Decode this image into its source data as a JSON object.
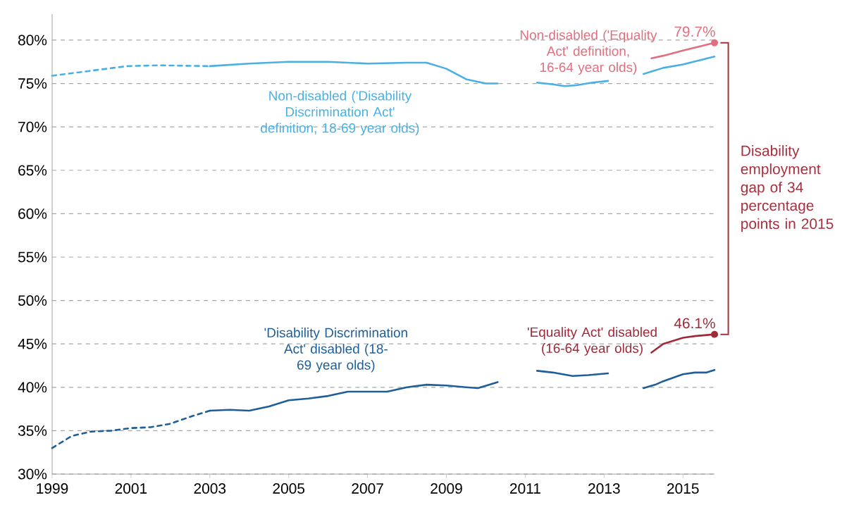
{
  "chart_data": {
    "type": "line",
    "annotations": [
      "Disability employment gap of 34 percentage points in 2015"
    ],
    "xlim": [
      1999,
      2015.8
    ],
    "ylim": [
      30,
      83
    ],
    "xticks": [
      1999,
      2001,
      2003,
      2005,
      2007,
      2009,
      2011,
      2013,
      2015
    ],
    "yticks": [
      {
        "value": 30,
        "label": "30%"
      },
      {
        "value": 35,
        "label": "35%"
      },
      {
        "value": 40,
        "label": "40%"
      },
      {
        "value": 45,
        "label": "45%"
      },
      {
        "value": 50,
        "label": "50%"
      },
      {
        "value": 55,
        "label": "55%"
      },
      {
        "value": 60,
        "label": "60%"
      },
      {
        "value": 65,
        "label": "65%"
      },
      {
        "value": 70,
        "label": "70%"
      },
      {
        "value": 75,
        "label": "75%"
      },
      {
        "value": 80,
        "label": "80%"
      }
    ],
    "grid": "y",
    "legend": false,
    "series": [
      {
        "color": "#4ab0e4",
        "line_style": "dashed",
        "x": [
          1999,
          2000.9,
          2001.7,
          2003
        ],
        "values": [
          75.9,
          77.0,
          77.1,
          77.0
        ]
      },
      {
        "name": "Non-disabled ('Disability Discrimination Act' definition, 18-69 year olds)",
        "color": "#4ab0e4",
        "line_style": "solid",
        "x": [
          2003,
          2004,
          2005,
          2006,
          2007,
          2008,
          2008.5,
          2009,
          2009.5,
          2010,
          2010.3,
          2010.8,
          2011.3,
          2011.7,
          2012,
          2012.3,
          2012.7,
          2013.1,
          2013.5,
          2014,
          2014.5,
          2015,
          2015.8
        ],
        "values": [
          77.0,
          77.3,
          77.5,
          77.5,
          77.3,
          77.4,
          77.4,
          76.7,
          75.5,
          75.0,
          75.0,
          null,
          75.1,
          74.9,
          74.7,
          74.8,
          75.1,
          75.3,
          null,
          76.1,
          76.8,
          77.2,
          78.1
        ]
      },
      {
        "name": "Non-disabled ('Equality Act' definition, 16-64 year olds)",
        "color": "#e0707f",
        "line_style": "solid",
        "x": [
          2014.2,
          2014.5,
          2015,
          2015.8
        ],
        "values": [
          77.9,
          78.2,
          78.8,
          79.7
        ],
        "value_labels": [
          null,
          null,
          null,
          "79.7%"
        ]
      },
      {
        "color": "#1f5f99",
        "line_style": "dashed",
        "x": [
          1999,
          1999.5,
          2000,
          2000.5,
          2001,
          2001.5,
          2002,
          2002.5,
          2003
        ],
        "values": [
          33.0,
          34.4,
          34.9,
          35.0,
          35.3,
          35.4,
          35.8,
          36.6,
          37.3
        ]
      },
      {
        "name": "'Disability Discrimination Act' disabled (18-69 year olds)",
        "color": "#1f5f99",
        "line_style": "solid",
        "x": [
          2003,
          2003.5,
          2004,
          2004.5,
          2005,
          2005.5,
          2006,
          2006.5,
          2007,
          2007.5,
          2008,
          2008.5,
          2009,
          2009.5,
          2009.8,
          2010.3,
          2010.8,
          2011.3,
          2011.7,
          2012.2,
          2012.6,
          2013.1,
          2013.5,
          2014,
          2014.3,
          2014.5,
          2015,
          2015.3,
          2015.6,
          2015.8
        ],
        "values": [
          37.3,
          37.4,
          37.3,
          37.8,
          38.5,
          38.7,
          39.0,
          39.5,
          39.5,
          39.5,
          40.0,
          40.3,
          40.2,
          40.0,
          39.9,
          40.6,
          null,
          41.9,
          41.7,
          41.3,
          41.4,
          41.6,
          null,
          39.9,
          40.3,
          40.7,
          41.5,
          41.7,
          41.7,
          42.0
        ]
      },
      {
        "name": "'Equality Act' disabled (16-64 year olds)",
        "color": "#9e2a3a",
        "line_style": "solid",
        "x": [
          2014.2,
          2014.5,
          2015,
          2015.3,
          2015.8
        ],
        "values": [
          44.0,
          45.0,
          45.7,
          45.9,
          46.1
        ],
        "value_labels": [
          null,
          null,
          null,
          null,
          "46.1%"
        ]
      }
    ]
  }
}
